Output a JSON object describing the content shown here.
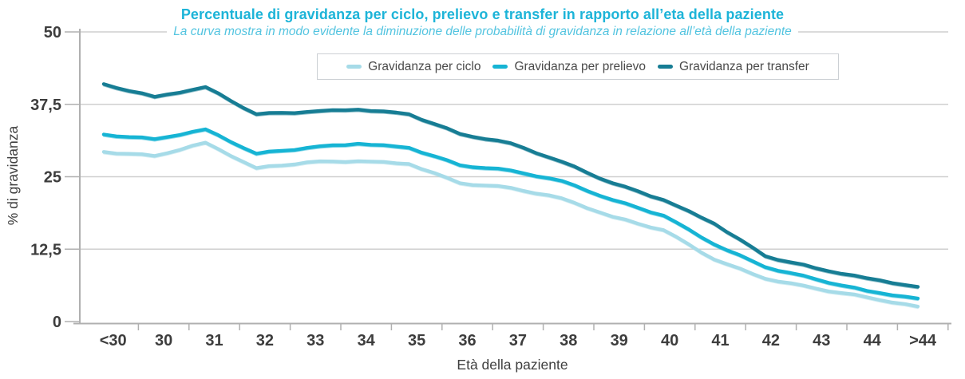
{
  "chart_data": {
    "type": "line",
    "title": "Percentuale di gravidanza per ciclo, prelievo e transfer in rapporto all’eta della paziente",
    "subtitle": "La curva mostra in modo evidente la diminuzione delle probabilità di gravidanza in relazione all’età della paziente",
    "xlabel": "Età della paziente",
    "ylabel": "% di gravidanza",
    "categories": [
      "<30",
      "30",
      "31",
      "32",
      "33",
      "34",
      "35",
      "36",
      "37",
      "38",
      "39",
      "40",
      "41",
      "42",
      "43",
      "44",
      ">44"
    ],
    "yticks": [
      {
        "label": "0",
        "value": 0
      },
      {
        "label": "12,5",
        "value": 12.5
      },
      {
        "label": "25",
        "value": 25
      },
      {
        "label": "37,5",
        "value": 37.5
      },
      {
        "label": "50",
        "value": 50
      }
    ],
    "ylim": [
      0,
      50
    ],
    "grid": true,
    "legend_position": "top-center",
    "series": [
      {
        "name": "Gravidanza per ciclo",
        "color": "#a6dbe8",
        "values": [
          29.3,
          28.6,
          30.9,
          26.5,
          27.5,
          27.7,
          27.2,
          23.9,
          23.1,
          21.3,
          18.1,
          15.8,
          10.7,
          7.4,
          5.7,
          4.2,
          2.6
        ]
      },
      {
        "name": "Gravidanza per prelievo",
        "color": "#16b4d4",
        "values": [
          32.3,
          31.5,
          33.2,
          29.0,
          30.0,
          30.7,
          30.0,
          27.0,
          26.1,
          24.3,
          21.0,
          18.3,
          13.3,
          9.4,
          7.3,
          5.3,
          4.0
        ]
      },
      {
        "name": "Gravidanza per transfer",
        "color": "#177d94",
        "values": [
          41.0,
          38.8,
          40.5,
          35.8,
          36.2,
          36.6,
          35.8,
          32.4,
          30.8,
          27.6,
          23.9,
          21.0,
          16.9,
          11.3,
          9.2,
          7.5,
          6.0
        ]
      }
    ],
    "style": {
      "title_color": "#1db4d8",
      "subtitle_color": "#53c4e0",
      "axis_text_color": "#3d3d3d",
      "axis_title_color": "#3f3f3f",
      "legend_text_color": "#4a4a4a",
      "legend_border_color": "#ccd0d4",
      "gridline_color": "#cfcfcf",
      "axis_line_color": "#b0b0b0"
    }
  }
}
